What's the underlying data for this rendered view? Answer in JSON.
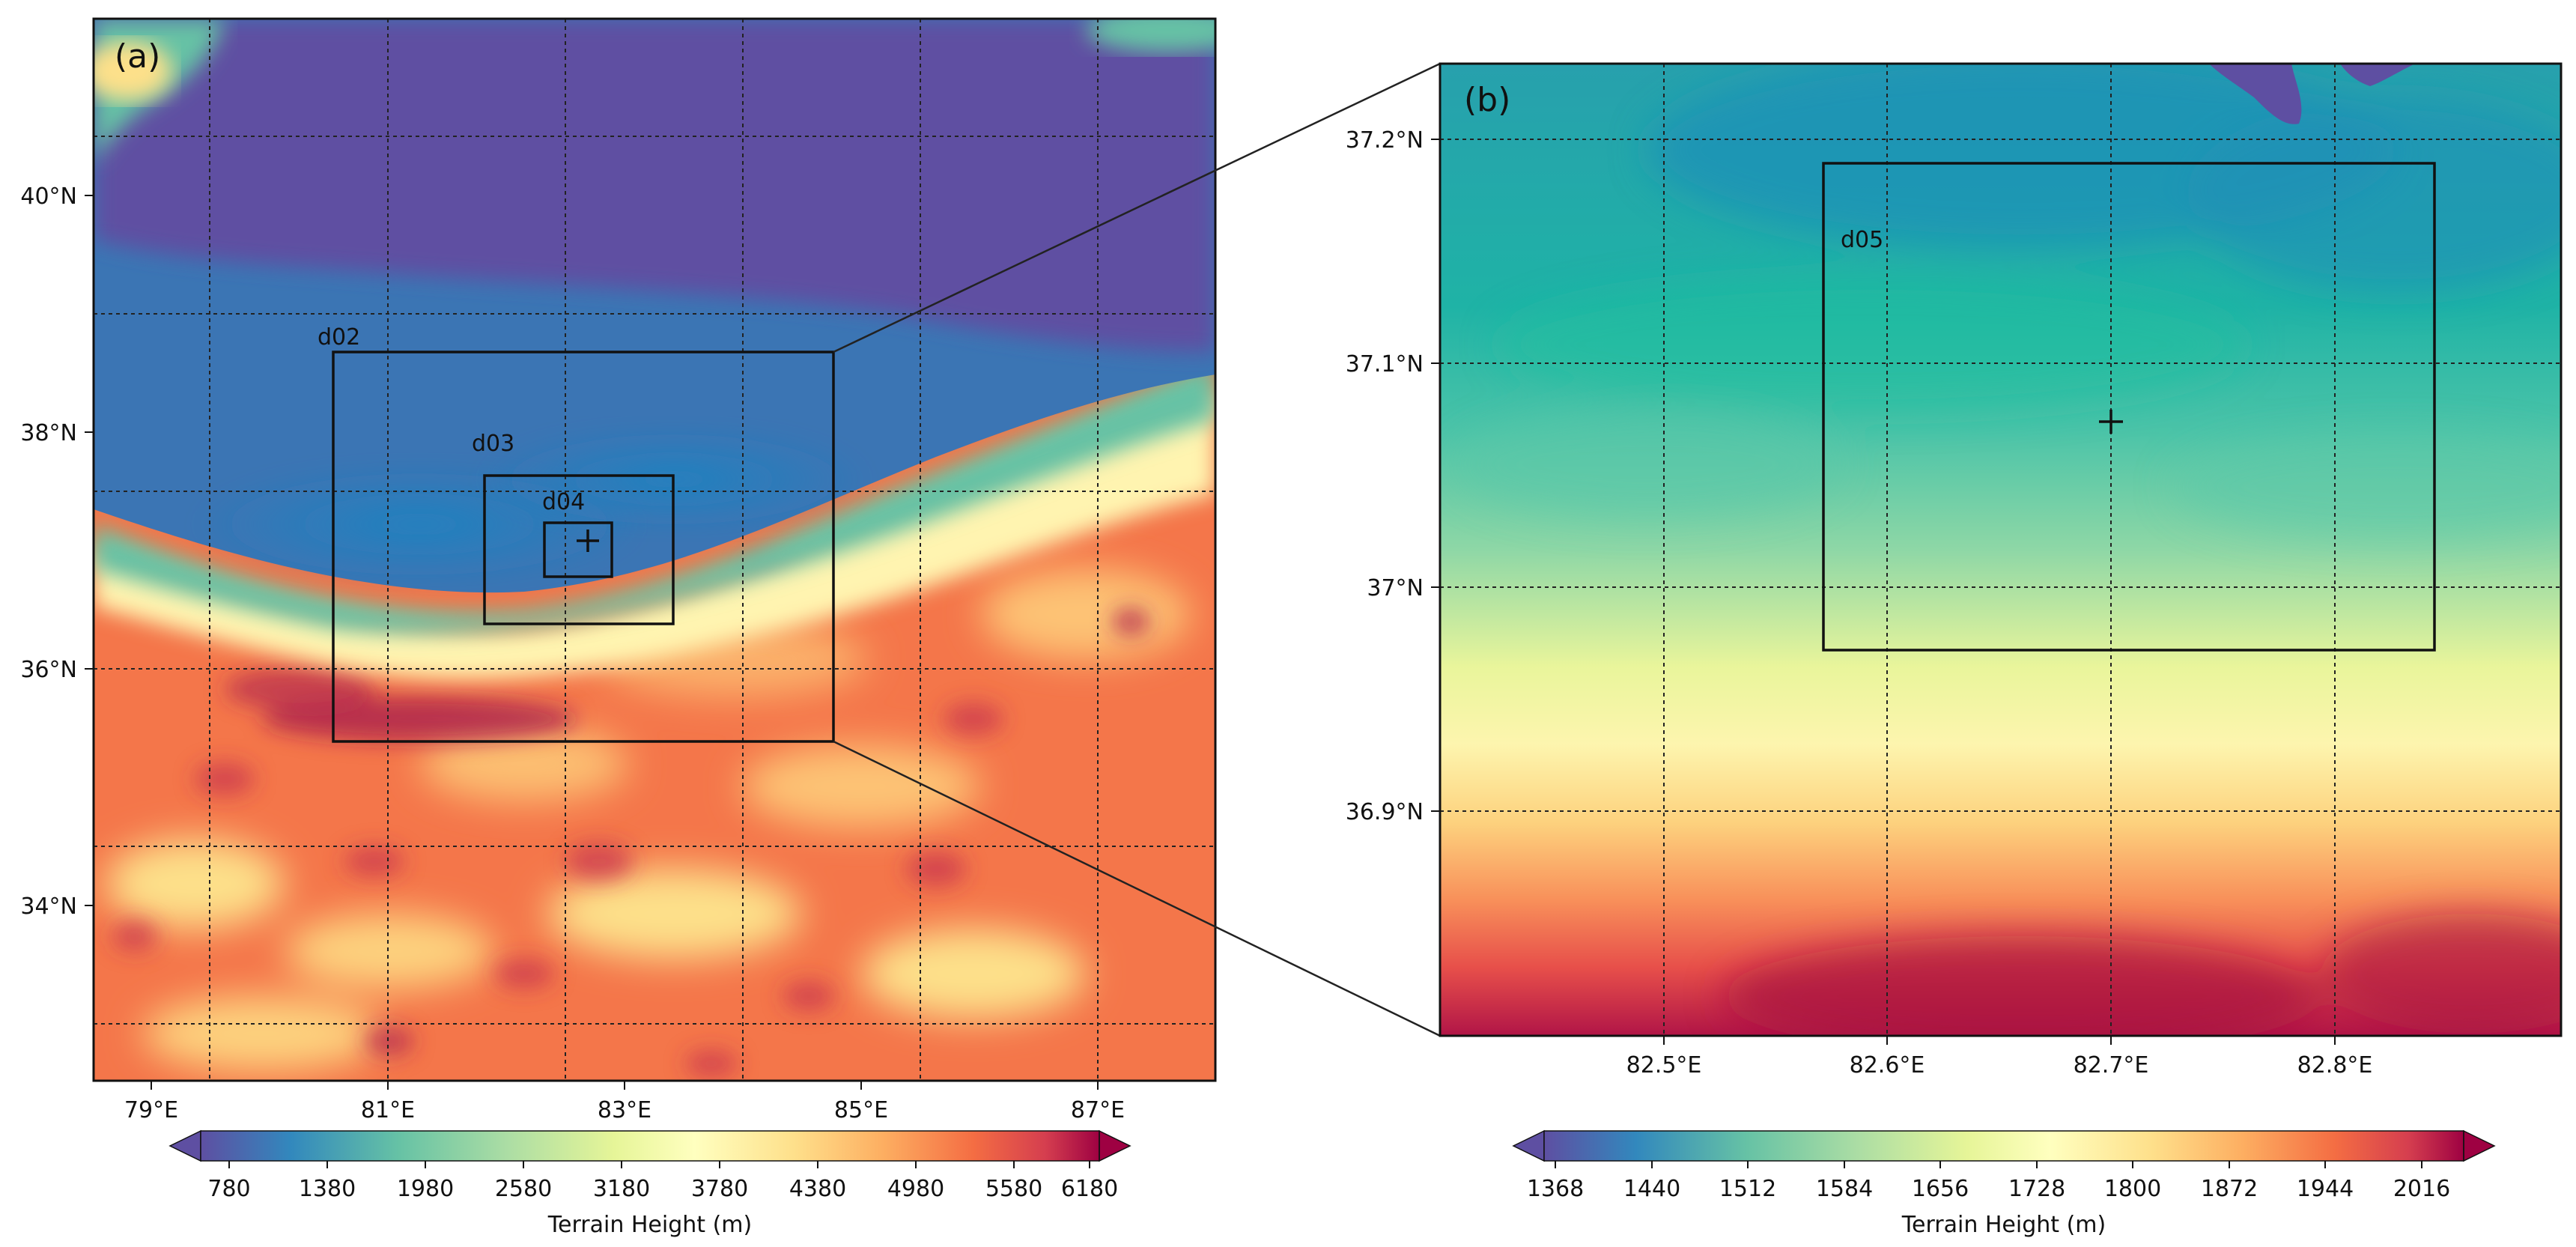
{
  "panel_a": {
    "label": "(a)",
    "x_ticks": [
      "79°E",
      "81°E",
      "83°E",
      "85°E",
      "87°E"
    ],
    "y_ticks": [
      "40°N",
      "38°N",
      "36°N",
      "34°N"
    ],
    "domains": [
      "d02",
      "d03",
      "d04"
    ],
    "colorbar": {
      "label": "Terrain Height (m)",
      "ticks": [
        "780",
        "1380",
        "1980",
        "2580",
        "3180",
        "3780",
        "4380",
        "4980",
        "5580",
        "6180"
      ]
    }
  },
  "panel_b": {
    "label": "(b)",
    "x_ticks": [
      "82.5°E",
      "82.6°E",
      "82.7°E",
      "82.8°E"
    ],
    "y_ticks": [
      "37.2°N",
      "37.1°N",
      "37°N",
      "36.9°N"
    ],
    "domains": [
      "d05"
    ],
    "colorbar": {
      "label": "Terrain Height (m)",
      "ticks": [
        "1368",
        "1440",
        "1512",
        "1584",
        "1656",
        "1728",
        "1800",
        "1872",
        "1944",
        "2016"
      ]
    }
  },
  "colors": {
    "low": "#5e4fa2",
    "mid_blue": "#3288bd",
    "teal": "#66c2a5",
    "yellow": "#ffffbf",
    "orange": "#f46d43",
    "high": "#9e0142"
  },
  "chart_data": [
    {
      "type": "heatmap",
      "title": "(a)",
      "xlabel": "",
      "ylabel": "",
      "x_ticks": [
        "79°E",
        "81°E",
        "83°E",
        "85°E",
        "87°E"
      ],
      "y_ticks": [
        "40°N",
        "38°N",
        "36°N",
        "34°N"
      ],
      "lon_range": [
        78.5,
        88
      ],
      "lat_range": [
        32.5,
        41.5
      ],
      "colormap": "Spectral_r",
      "colorbar_label": "Terrain Height (m)",
      "colorbar_range": [
        780,
        6180
      ],
      "nested_domains": [
        {
          "name": "d02",
          "lon": [
            80.5,
            84.75
          ],
          "lat": [
            35.4,
            38.7
          ]
        },
        {
          "name": "d03",
          "lon": [
            81.8,
            83.4
          ],
          "lat": [
            36.4,
            37.65
          ]
        },
        {
          "name": "d04",
          "lon": [
            82.3,
            82.85
          ],
          "lat": [
            36.8,
            37.25
          ]
        }
      ],
      "marker": {
        "symbol": "+",
        "lon": 82.7,
        "lat": 37.07
      }
    },
    {
      "type": "heatmap",
      "title": "(b)",
      "xlabel": "",
      "ylabel": "",
      "x_ticks": [
        "82.5°E",
        "82.6°E",
        "82.7°E",
        "82.8°E"
      ],
      "y_ticks": [
        "37.2°N",
        "37.1°N",
        "37°N",
        "36.9°N"
      ],
      "lon_range": [
        82.41,
        82.89
      ],
      "lat_range": [
        36.8,
        37.23
      ],
      "colormap": "Spectral_r",
      "colorbar_label": "Terrain Height (m)",
      "colorbar_range": [
        1368,
        2016
      ],
      "nested_domains": [
        {
          "name": "d05",
          "lon": [
            82.57,
            82.84
          ],
          "lat": [
            36.97,
            37.19
          ]
        }
      ],
      "marker": {
        "symbol": "+",
        "lon": 82.7,
        "lat": 37.073
      }
    }
  ]
}
